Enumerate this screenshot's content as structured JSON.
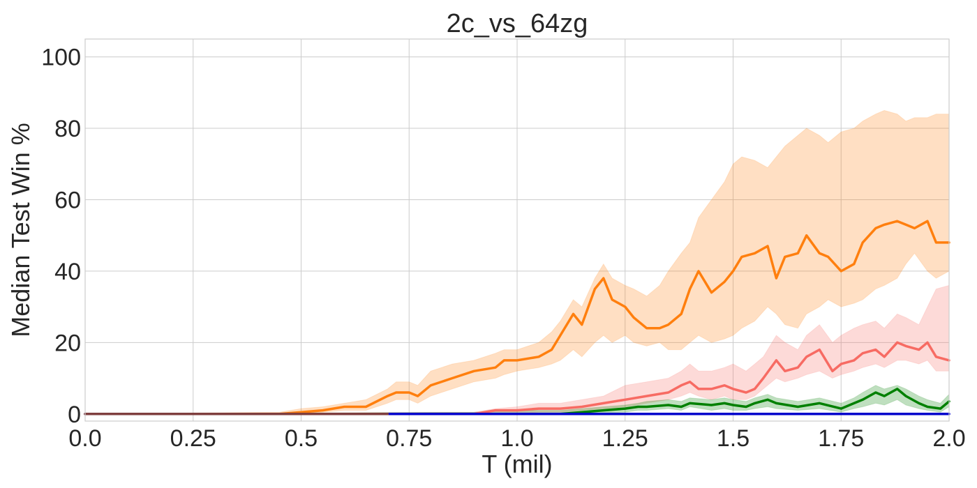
{
  "chart_data": {
    "type": "line",
    "title": "2c_vs_64zg",
    "xlabel": "T (mil)",
    "ylabel": "Median Test Win %",
    "xlim": [
      0,
      2.0
    ],
    "ylim": [
      -2,
      105
    ],
    "xticks": [
      "0.0",
      "0.25",
      "0.5",
      "0.75",
      "1.0",
      "1.25",
      "1.5",
      "1.75",
      "2.0"
    ],
    "xtick_values": [
      0,
      0.25,
      0.5,
      0.75,
      1.0,
      1.25,
      1.5,
      1.75,
      2.0
    ],
    "yticks": [
      "0",
      "20",
      "40",
      "60",
      "80",
      "100"
    ],
    "ytick_values": [
      0,
      20,
      40,
      60,
      80,
      100
    ],
    "grid": true,
    "legend": "none",
    "series": [
      {
        "color": "#ff7f0e",
        "x": [
          0.0,
          0.45,
          0.5,
          0.55,
          0.6,
          0.65,
          0.7,
          0.72,
          0.75,
          0.77,
          0.8,
          0.85,
          0.9,
          0.95,
          0.97,
          1.0,
          1.05,
          1.08,
          1.1,
          1.13,
          1.15,
          1.18,
          1.2,
          1.22,
          1.25,
          1.27,
          1.3,
          1.33,
          1.35,
          1.38,
          1.4,
          1.42,
          1.45,
          1.48,
          1.5,
          1.52,
          1.55,
          1.58,
          1.6,
          1.62,
          1.65,
          1.67,
          1.7,
          1.72,
          1.75,
          1.78,
          1.8,
          1.83,
          1.85,
          1.88,
          1.9,
          1.92,
          1.95,
          1.97,
          2.0
        ],
        "y": [
          0,
          0,
          0.5,
          1,
          2,
          2,
          5,
          6,
          6,
          5,
          8,
          10,
          12,
          13,
          15,
          15,
          16,
          18,
          22,
          28,
          25,
          35,
          38,
          32,
          30,
          27,
          24,
          24,
          25,
          28,
          35,
          40,
          34,
          37,
          40,
          44,
          45,
          47,
          38,
          44,
          45,
          50,
          45,
          44,
          40,
          42,
          48,
          52,
          53,
          54,
          53,
          52,
          54,
          48,
          48
        ],
        "lower": [
          0,
          0,
          0,
          0.5,
          1,
          1,
          3,
          4,
          4,
          3,
          5,
          7,
          9,
          10,
          11,
          12,
          13,
          14,
          15,
          18,
          16,
          20,
          22,
          20,
          22,
          20,
          19,
          20,
          18,
          18,
          20,
          22,
          20,
          21,
          22,
          24,
          26,
          30,
          28,
          25,
          24,
          28,
          30,
          32,
          30,
          31,
          32,
          35,
          36,
          38,
          42,
          45,
          40,
          38,
          40
        ],
        "upper": [
          0,
          0.5,
          1.5,
          2,
          3,
          4,
          7,
          9,
          9,
          8,
          12,
          14,
          15,
          17,
          18,
          18,
          20,
          23,
          26,
          32,
          30,
          38,
          42,
          38,
          36,
          35,
          33,
          36,
          40,
          45,
          48,
          55,
          60,
          65,
          70,
          72,
          71,
          69,
          72,
          75,
          78,
          80,
          78,
          76,
          79,
          80,
          82,
          84,
          85,
          84,
          82,
          83,
          83,
          84,
          84
        ]
      },
      {
        "color": "#f76b63",
        "x": [
          0.0,
          0.9,
          0.95,
          1.0,
          1.05,
          1.1,
          1.15,
          1.2,
          1.25,
          1.3,
          1.35,
          1.38,
          1.4,
          1.42,
          1.45,
          1.48,
          1.5,
          1.53,
          1.55,
          1.57,
          1.6,
          1.62,
          1.65,
          1.67,
          1.7,
          1.73,
          1.75,
          1.78,
          1.8,
          1.83,
          1.85,
          1.88,
          1.9,
          1.93,
          1.95,
          1.97,
          2.0
        ],
        "y": [
          0,
          0,
          1,
          1,
          1.5,
          1.5,
          2,
          3,
          4,
          5,
          6,
          8,
          9,
          7,
          7,
          8,
          7,
          6,
          7,
          10,
          15,
          12,
          13,
          16,
          18,
          12,
          14,
          15,
          17,
          18,
          16,
          20,
          19,
          18,
          20,
          16,
          15
        ],
        "lower": [
          0,
          0,
          0,
          0,
          0.5,
          0.5,
          1,
          1.5,
          2,
          3,
          4,
          5,
          6,
          5,
          4,
          5,
          4,
          4,
          5,
          7,
          10,
          9,
          10,
          11,
          12,
          10,
          11,
          12,
          13,
          14,
          13,
          15,
          15,
          14,
          15,
          12,
          12
        ],
        "upper": [
          0,
          0.5,
          1.5,
          2,
          3,
          3,
          4,
          5,
          8,
          9,
          10,
          12,
          14,
          12,
          12,
          13,
          14,
          12,
          14,
          16,
          22,
          20,
          18,
          22,
          25,
          20,
          22,
          24,
          25,
          26,
          24,
          28,
          27,
          25,
          30,
          35,
          36
        ]
      },
      {
        "color": "#008000",
        "x": [
          0.0,
          0.9,
          1.0,
          1.1,
          1.15,
          1.2,
          1.25,
          1.28,
          1.3,
          1.35,
          1.38,
          1.4,
          1.45,
          1.48,
          1.5,
          1.53,
          1.55,
          1.58,
          1.6,
          1.65,
          1.7,
          1.75,
          1.78,
          1.8,
          1.83,
          1.85,
          1.88,
          1.9,
          1.93,
          1.95,
          1.98,
          2.0
        ],
        "y": [
          0,
          0,
          0,
          0,
          0.5,
          1,
          1.5,
          2,
          2,
          2.5,
          2,
          3,
          2.5,
          3,
          2.5,
          2,
          3,
          4,
          3,
          2,
          3,
          1.5,
          3,
          4,
          6,
          5,
          7,
          5,
          3,
          2,
          1.5,
          3.5
        ],
        "lower": [
          0,
          0,
          0,
          0,
          0,
          0.3,
          0.5,
          1,
          1,
          1.5,
          1,
          2,
          1,
          1.5,
          1,
          1,
          1.5,
          2,
          1.5,
          1,
          1.5,
          0.5,
          1.5,
          2,
          3,
          2.5,
          4,
          2.5,
          1.5,
          1,
          0.5,
          2
        ],
        "upper": [
          0,
          0.5,
          1,
          1,
          1.5,
          2,
          2.5,
          3,
          3.5,
          4,
          3.5,
          4.5,
          4,
          4.5,
          4,
          3.5,
          4.5,
          5.5,
          4.5,
          3.5,
          4.5,
          3,
          4.5,
          6,
          8,
          7,
          8,
          7,
          5,
          4,
          3,
          5.5
        ]
      },
      {
        "color": "#0000cc",
        "x": [
          0.0,
          2.0
        ],
        "y": [
          0,
          0
        ]
      },
      {
        "color": "#e377c2",
        "x": [
          0.0,
          0.7
        ],
        "y": [
          0,
          0
        ]
      },
      {
        "color": "#7f3f3f",
        "x": [
          0.0,
          0.7
        ],
        "y": [
          0,
          0
        ]
      }
    ]
  }
}
